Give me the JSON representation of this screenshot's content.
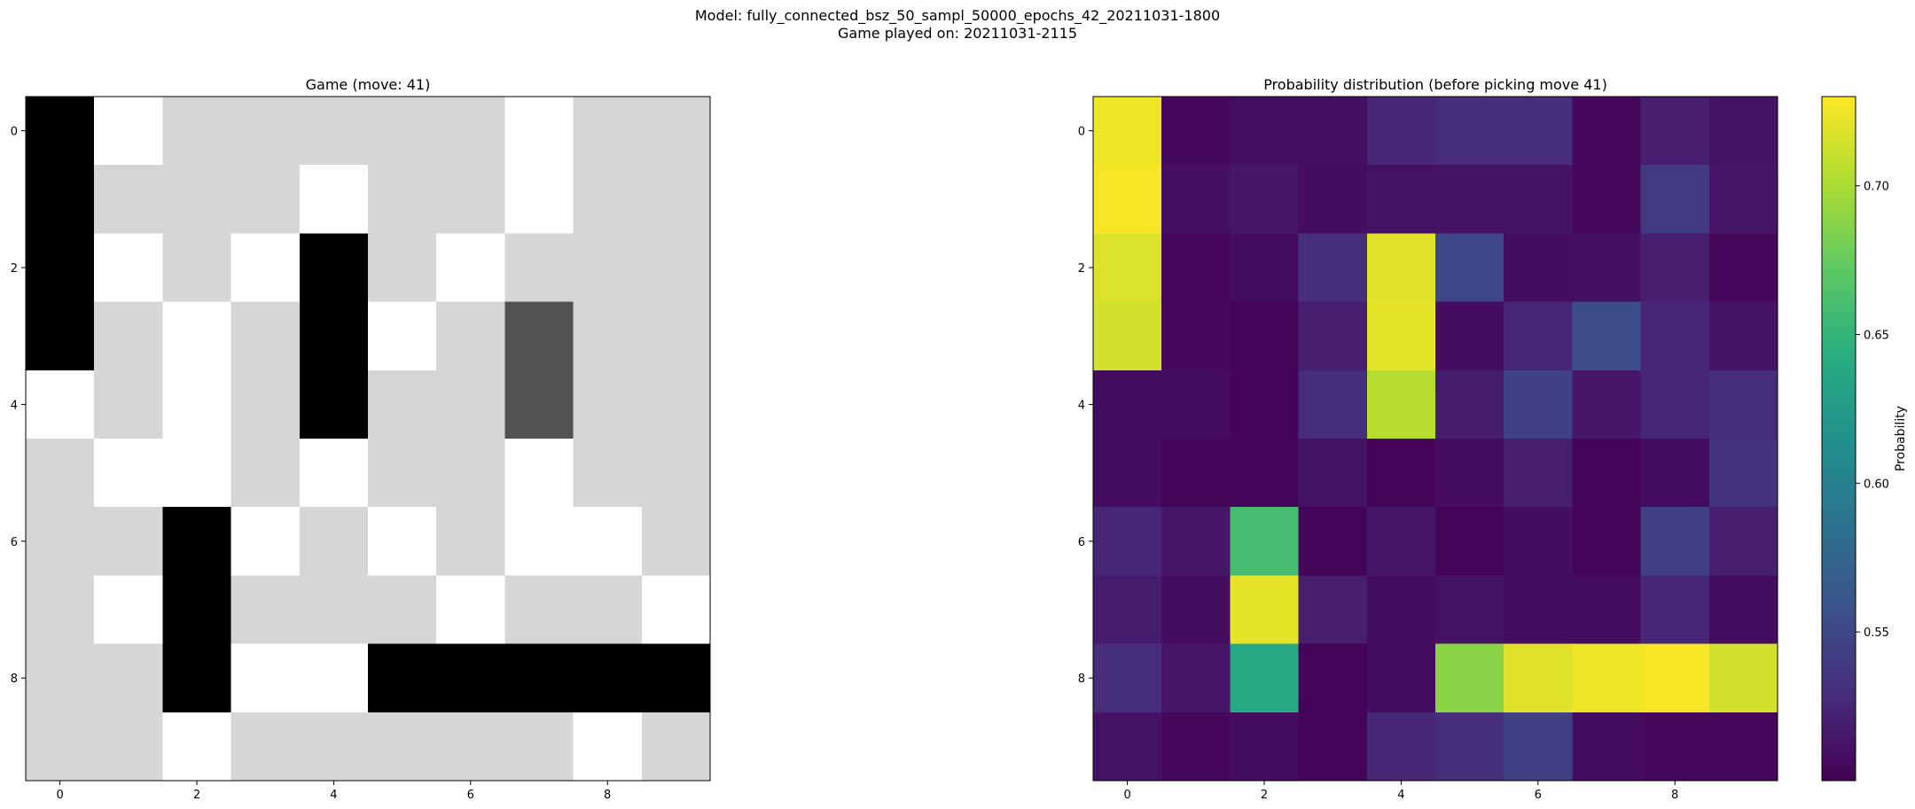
{
  "figure": {
    "suptitle_line1": "Model: fully_connected_bsz_50_sampl_50000_epochs_42_20211031-1800",
    "suptitle_line2": "Game played on: 20211031-2115"
  },
  "chart_data": [
    {
      "type": "heatmap",
      "title": "Game (move: 41)",
      "xlabel": "",
      "ylabel": "",
      "x_ticks": [
        0,
        2,
        4,
        6,
        8
      ],
      "y_ticks": [
        0,
        2,
        4,
        6,
        8
      ],
      "colormap": "gray",
      "value_legend": {
        "0": "light-gray-empty",
        "1": "white",
        "2": "black",
        "3": "dark-gray"
      },
      "grid": false,
      "values": [
        [
          2,
          1,
          0,
          0,
          0,
          0,
          0,
          1,
          0,
          0
        ],
        [
          2,
          0,
          0,
          0,
          1,
          0,
          0,
          1,
          0,
          0
        ],
        [
          2,
          1,
          0,
          1,
          2,
          0,
          1,
          0,
          0,
          0
        ],
        [
          2,
          0,
          1,
          0,
          2,
          1,
          0,
          3,
          0,
          0
        ],
        [
          1,
          0,
          1,
          0,
          2,
          0,
          0,
          3,
          0,
          0
        ],
        [
          0,
          1,
          1,
          0,
          1,
          0,
          0,
          1,
          0,
          0
        ],
        [
          0,
          0,
          2,
          1,
          0,
          1,
          0,
          1,
          1,
          0
        ],
        [
          0,
          1,
          2,
          0,
          0,
          0,
          1,
          0,
          0,
          1
        ],
        [
          0,
          0,
          2,
          1,
          1,
          2,
          2,
          2,
          2,
          2
        ],
        [
          0,
          0,
          1,
          0,
          0,
          0,
          0,
          0,
          1,
          0
        ]
      ]
    },
    {
      "type": "heatmap",
      "title": "Probability distribution (before picking move 41)",
      "xlabel": "",
      "ylabel": "",
      "x_ticks": [
        0,
        2,
        4,
        6,
        8
      ],
      "y_ticks": [
        0,
        2,
        4,
        6,
        8
      ],
      "colormap": "viridis",
      "vmin": 0.5,
      "vmax": 0.73,
      "grid": false,
      "colorbar": {
        "label": "Probability",
        "ticks": [
          "0.55",
          "0.60",
          "0.65",
          "0.70"
        ]
      },
      "values": [
        [
          0.725,
          0.505,
          0.51,
          0.51,
          0.525,
          0.53,
          0.53,
          0.505,
          0.52,
          0.512
        ],
        [
          0.728,
          0.51,
          0.515,
          0.508,
          0.512,
          0.512,
          0.512,
          0.505,
          0.54,
          0.515
        ],
        [
          0.718,
          0.505,
          0.508,
          0.53,
          0.72,
          0.55,
          0.508,
          0.51,
          0.52,
          0.505
        ],
        [
          0.715,
          0.505,
          0.503,
          0.52,
          0.722,
          0.508,
          0.525,
          0.555,
          0.525,
          0.512
        ],
        [
          0.508,
          0.508,
          0.503,
          0.53,
          0.705,
          0.518,
          0.545,
          0.515,
          0.525,
          0.53
        ],
        [
          0.508,
          0.503,
          0.503,
          0.512,
          0.503,
          0.508,
          0.52,
          0.503,
          0.508,
          0.535
        ],
        [
          0.525,
          0.515,
          0.66,
          0.503,
          0.515,
          0.503,
          0.508,
          0.503,
          0.545,
          0.52
        ],
        [
          0.518,
          0.508,
          0.722,
          0.52,
          0.508,
          0.512,
          0.508,
          0.508,
          0.525,
          0.508
        ],
        [
          0.53,
          0.515,
          0.64,
          0.503,
          0.508,
          0.69,
          0.72,
          0.725,
          0.728,
          0.715
        ],
        [
          0.512,
          0.505,
          0.508,
          0.503,
          0.525,
          0.53,
          0.545,
          0.508,
          0.505,
          0.505
        ]
      ]
    }
  ]
}
